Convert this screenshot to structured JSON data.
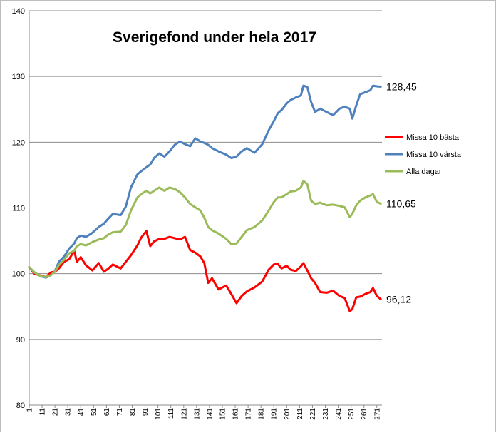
{
  "chart_data": {
    "type": "line",
    "title": "Sverigefond under hela 2017",
    "xlabel": "",
    "ylabel": "",
    "ylim": [
      80,
      140
    ],
    "yticks": [
      80,
      90,
      100,
      110,
      120,
      130,
      140
    ],
    "xlim": [
      1,
      275
    ],
    "xticks": [
      1,
      11,
      21,
      31,
      41,
      51,
      61,
      71,
      81,
      91,
      101,
      111,
      121,
      131,
      141,
      151,
      161,
      171,
      181,
      191,
      201,
      211,
      221,
      231,
      241,
      251,
      261,
      271
    ],
    "grid": "horizontal",
    "legend_position": "right",
    "series": [
      {
        "name": "Missa 10 bästa",
        "color": "#ff0000",
        "end_label": "96,12",
        "x": [
          1,
          5,
          10,
          14,
          18,
          21,
          24,
          28,
          32,
          36,
          38,
          41,
          45,
          50,
          55,
          59,
          62,
          66,
          72,
          76,
          80,
          85,
          88,
          92,
          95,
          98,
          102,
          106,
          110,
          114,
          118,
          122,
          126,
          130,
          134,
          137,
          140,
          143,
          148,
          154,
          158,
          162,
          166,
          170,
          176,
          182,
          187,
          191,
          194,
          197,
          201,
          204,
          208,
          212,
          214,
          217,
          220,
          223,
          227,
          232,
          237,
          242,
          246,
          250,
          252,
          255,
          258,
          262,
          266,
          268,
          271,
          274
        ],
        "values": [
          101,
          100,
          99.7,
          99.5,
          100.2,
          100.3,
          100.8,
          101.8,
          102.2,
          103.5,
          101.8,
          102.5,
          101.3,
          100.5,
          101.6,
          100.3,
          100.7,
          101.4,
          100.8,
          101.8,
          102.8,
          104.3,
          105.5,
          106.5,
          104.2,
          104.9,
          105.3,
          105.3,
          105.6,
          105.4,
          105.2,
          105.6,
          103.6,
          103.2,
          102.6,
          101.6,
          98.6,
          99.3,
          97.6,
          98.2,
          96.9,
          95.5,
          96.6,
          97.3,
          97.9,
          98.8,
          100.6,
          101.4,
          101.5,
          100.8,
          101.2,
          100.6,
          100.4,
          101.1,
          101.6,
          100.5,
          99.3,
          98.6,
          97.2,
          97.1,
          97.4,
          96.6,
          96.3,
          94.3,
          94.6,
          96.4,
          96.5,
          96.9,
          97.2,
          97.8,
          96.6,
          96.12
        ]
      },
      {
        "name": "Missa 10 värsta",
        "color": "#4f81bd",
        "end_label": "128,45",
        "x": [
          1,
          5,
          10,
          14,
          18,
          21,
          24,
          28,
          32,
          36,
          38,
          41,
          45,
          50,
          55,
          59,
          62,
          66,
          72,
          76,
          80,
          85,
          88,
          92,
          95,
          98,
          102,
          106,
          110,
          114,
          118,
          122,
          126,
          130,
          134,
          137,
          140,
          143,
          148,
          154,
          158,
          162,
          166,
          170,
          176,
          182,
          187,
          191,
          194,
          197,
          201,
          204,
          208,
          212,
          214,
          217,
          220,
          223,
          227,
          232,
          237,
          242,
          246,
          250,
          252,
          255,
          258,
          262,
          266,
          268,
          271,
          274
        ],
        "values": [
          101,
          100.2,
          99.6,
          99.4,
          99.8,
          100.4,
          101.8,
          102.6,
          103.8,
          104.6,
          105.4,
          105.8,
          105.6,
          106.2,
          107.1,
          107.6,
          108.3,
          109.1,
          108.9,
          110.2,
          113.1,
          115.1,
          115.6,
          116.2,
          116.6,
          117.6,
          118.3,
          117.8,
          118.6,
          119.6,
          120.1,
          119.7,
          119.4,
          120.6,
          120.1,
          119.9,
          119.6,
          119.1,
          118.6,
          118.1,
          117.6,
          117.8,
          118.6,
          119.1,
          118.4,
          119.7,
          121.8,
          123.2,
          124.4,
          124.9,
          125.9,
          126.4,
          126.8,
          127.1,
          128.6,
          128.4,
          126.1,
          124.6,
          125.1,
          124.6,
          124.1,
          125.1,
          125.4,
          125.1,
          123.6,
          125.6,
          127.3,
          127.6,
          127.9,
          128.6,
          128.5,
          128.45
        ]
      },
      {
        "name": "Alla dagar",
        "color": "#9bbb59",
        "end_label": "110,65",
        "x": [
          1,
          5,
          10,
          14,
          18,
          21,
          24,
          28,
          32,
          36,
          38,
          41,
          45,
          50,
          55,
          59,
          62,
          66,
          72,
          76,
          80,
          85,
          88,
          92,
          95,
          98,
          102,
          106,
          110,
          114,
          118,
          122,
          126,
          130,
          134,
          137,
          140,
          143,
          148,
          154,
          158,
          162,
          166,
          170,
          176,
          182,
          187,
          191,
          194,
          197,
          201,
          204,
          208,
          212,
          214,
          217,
          220,
          223,
          227,
          232,
          237,
          242,
          246,
          250,
          252,
          255,
          258,
          262,
          266,
          268,
          271,
          274
        ],
        "values": [
          101,
          100.2,
          99.6,
          99.5,
          99.8,
          100.3,
          101.3,
          102.1,
          103.1,
          103.5,
          104.2,
          104.5,
          104.3,
          104.8,
          105.2,
          105.4,
          105.9,
          106.3,
          106.4,
          107.4,
          109.6,
          111.6,
          112.1,
          112.6,
          112.2,
          112.6,
          113.1,
          112.6,
          113.1,
          112.9,
          112.4,
          111.6,
          110.6,
          110.1,
          109.6,
          108.5,
          107.1,
          106.6,
          106.1,
          105.3,
          104.5,
          104.6,
          105.6,
          106.6,
          107.1,
          108.1,
          109.6,
          110.9,
          111.6,
          111.6,
          112.1,
          112.5,
          112.6,
          113.1,
          114.1,
          113.6,
          111.1,
          110.6,
          110.8,
          110.4,
          110.5,
          110.3,
          110.1,
          108.6,
          109.1,
          110.4,
          111.1,
          111.6,
          111.9,
          112.1,
          110.9,
          110.65
        ]
      }
    ]
  }
}
